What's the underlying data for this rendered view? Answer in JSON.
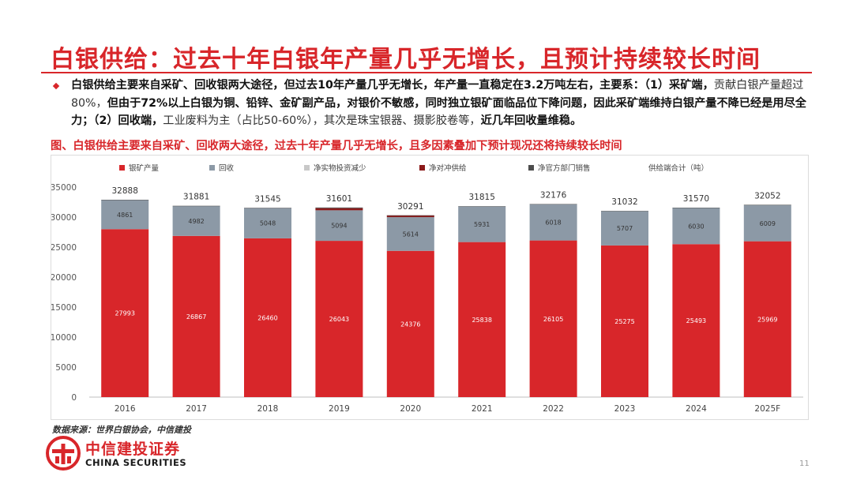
{
  "page": {
    "title": "白银供给：过去十年白银年产量几乎无增长，且预计持续较长时间",
    "summary_segments": [
      {
        "text": "白银供给主要来自采矿、回收银两大途径，但过去10年产量几乎无增长，年产量一直稳定在3.2万吨左右，主要系：（1）采矿端，",
        "bold": true
      },
      {
        "text": "贡献白银产量超过80%，",
        "bold": false
      },
      {
        "text": "但由于72%以上白银为铜、铅锌、金矿副产品，对银价不敏感，同时独立银矿面临品位下降问题，因此采矿端维持白银产量不降已经是用尽全力；（2）回收端，",
        "bold": true
      },
      {
        "text": "工业废料为主（占比50-60%），其次是珠宝银器、摄影胶卷等，",
        "bold": false
      },
      {
        "text": "近几年回收量维稳。",
        "bold": true
      }
    ],
    "figure_caption": "图、白银供给主要来自采矿、回收两大途径，过去十年产量几乎无增长，且多因素叠加下预计现况还将持续较长时间",
    "source": "数据来源：世界白银协会，中信建投",
    "brand_cn": "中信建投证券",
    "brand_en": "CHINA SECURITIES",
    "page_number": "11"
  },
  "colors": {
    "accent": "#d8262a",
    "mine": "#d8262a",
    "recycle": "#8c99a6",
    "net_physical_investment": "#c8c8c8",
    "net_hedging": "#8b1a1a",
    "net_official_sales": "#4d4d4d"
  },
  "chart_data": {
    "type": "bar",
    "stacked": true,
    "categories": [
      "2016",
      "2017",
      "2018",
      "2019",
      "2020",
      "2021",
      "2022",
      "2023",
      "2024",
      "2025F"
    ],
    "series": [
      {
        "name": "银矿产量",
        "color": "#d8262a",
        "values": [
          27993,
          26867,
          26460,
          26043,
          24376,
          25838,
          26105,
          25275,
          25493,
          25969
        ],
        "labels": true
      },
      {
        "name": "回收",
        "color": "#8c99a6",
        "values": [
          4861,
          4982,
          5048,
          5094,
          5614,
          5931,
          6018,
          5707,
          6030,
          6009
        ],
        "labels": true
      },
      {
        "name": "净实物投资减少",
        "color": "#c8c8c8",
        "values": [
          0,
          0,
          0,
          0,
          0,
          0,
          0,
          0,
          0,
          0
        ],
        "labels": false
      },
      {
        "name": "净对冲供给",
        "color": "#8b1a1a",
        "values": [
          0,
          0,
          0,
          350,
          300,
          0,
          0,
          0,
          0,
          0
        ],
        "labels": false
      },
      {
        "name": "净官方部门销售",
        "color": "#4d4d4d",
        "values": [
          34,
          32,
          37,
          114,
          1,
          46,
          53,
          50,
          47,
          74
        ],
        "labels": false
      }
    ],
    "totals_label": "供给端合计（吨）",
    "totals": [
      32888,
      31881,
      31545,
      31601,
      30291,
      31815,
      32176,
      31032,
      31570,
      32052
    ],
    "yticks": [
      "0",
      "5000",
      "10000",
      "15000",
      "20000",
      "25000",
      "30000",
      "35000"
    ],
    "ylim": [
      0,
      35000
    ]
  }
}
